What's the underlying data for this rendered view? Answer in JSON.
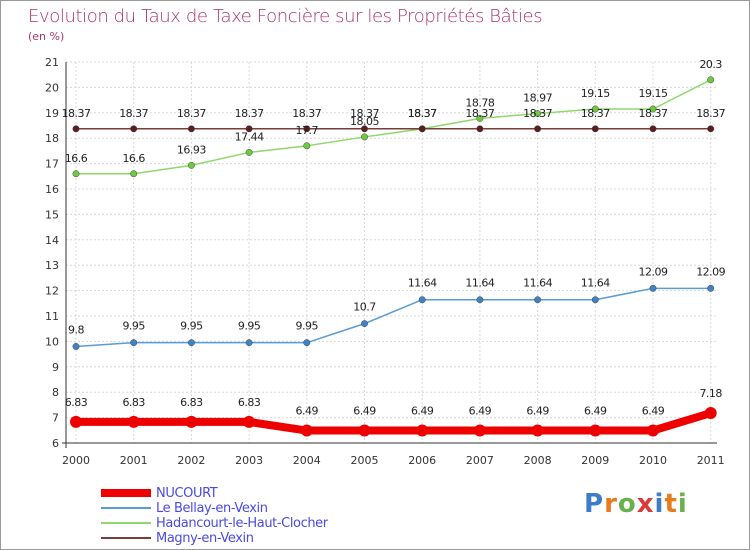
{
  "title": "Evolution du Taux de Taxe Foncière sur les Propriétés Bâties",
  "unit_label": "(en %)",
  "logo": {
    "letters": [
      {
        "ch": "P",
        "color": "#3d7cc9"
      },
      {
        "ch": "r",
        "color": "#e87b1e"
      },
      {
        "ch": "o",
        "color": "#6ab04c"
      },
      {
        "ch": "x",
        "color": "#d93a3a"
      },
      {
        "ch": "i",
        "color": "#3d7cc9"
      },
      {
        "ch": "t",
        "color": "#e87b1e"
      },
      {
        "ch": "i",
        "color": "#6ab04c"
      }
    ]
  },
  "chart_data": {
    "type": "line",
    "title": "Evolution du Taux de Taxe Foncière sur les Propriétés Bâties",
    "ylabel": "(en %)",
    "xlabel": "",
    "ylim": [
      6,
      21
    ],
    "yticks": [
      6,
      7,
      8,
      9,
      10,
      11,
      12,
      13,
      14,
      15,
      16,
      17,
      18,
      19,
      20,
      21
    ],
    "grid": true,
    "legend_position": "bottom-left",
    "x": [
      "2000",
      "2001",
      "2002",
      "2003",
      "2004",
      "2005",
      "2006",
      "2007",
      "2008",
      "2009",
      "2010",
      "2011"
    ],
    "series": [
      {
        "name": "NUCOURT",
        "color": "#ee0000",
        "marker_color": "#ee0000",
        "bold": true,
        "values": [
          6.83,
          6.83,
          6.83,
          6.83,
          6.49,
          6.49,
          6.49,
          6.49,
          6.49,
          6.49,
          6.49,
          7.18
        ],
        "labels": [
          "6.83",
          "6.83",
          "6.83",
          "6.83",
          "6.49",
          "6.49",
          "6.49",
          "6.49",
          "6.49",
          "6.49",
          "6.49",
          "7.18"
        ]
      },
      {
        "name": "Le Bellay-en-Vexin",
        "color": "#5b9bd5",
        "marker_color": "#3f82c6",
        "bold": false,
        "values": [
          9.8,
          9.95,
          9.95,
          9.95,
          9.95,
          10.7,
          11.64,
          11.64,
          11.64,
          11.64,
          12.09,
          12.09
        ],
        "labels": [
          "9.8",
          "9.95",
          "9.95",
          "9.95",
          "9.95",
          "10.7",
          "11.64",
          "11.64",
          "11.64",
          "11.64",
          "12.09",
          "12.09"
        ]
      },
      {
        "name": "Hadancourt-le-Haut-Clocher",
        "color": "#8fd76a",
        "marker_color": "#6ec93e",
        "bold": false,
        "values": [
          16.6,
          16.6,
          16.93,
          17.44,
          17.7,
          18.05,
          18.37,
          18.78,
          18.97,
          19.15,
          19.15,
          20.3
        ],
        "labels": [
          "16.6",
          "16.6",
          "16.93",
          "17.44",
          "17.7",
          "18.05",
          "18.37",
          "18.78",
          "18.97",
          "19.15",
          "19.15",
          "20.3"
        ]
      },
      {
        "name": "Magny-en-Vexin",
        "color": "#7a3b3b",
        "marker_color": "#5a1e1e",
        "bold": false,
        "values": [
          18.37,
          18.37,
          18.37,
          18.37,
          18.37,
          18.37,
          18.37,
          18.37,
          18.37,
          18.37,
          18.37,
          18.37
        ],
        "labels": [
          "18.37",
          "18.37",
          "18.37",
          "18.37",
          "18.37",
          "18.37",
          "18.37",
          "18.37",
          "18.37",
          "18.37",
          "18.37",
          "18.37"
        ]
      }
    ]
  }
}
